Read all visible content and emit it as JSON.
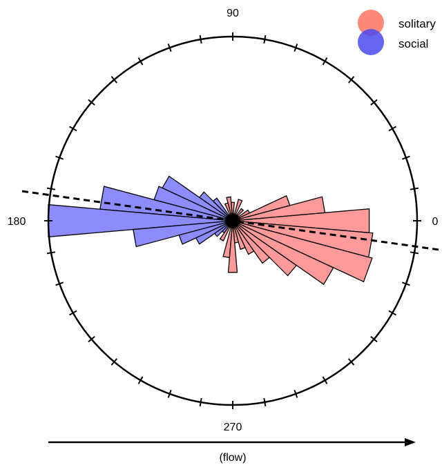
{
  "chart_data": {
    "type": "rose",
    "angle_unit": "degrees",
    "bin_width_deg": 10,
    "angle_labels": [
      {
        "angle": 0,
        "text": "0"
      },
      {
        "angle": 90,
        "text": "90"
      },
      {
        "angle": 180,
        "text": "180"
      },
      {
        "angle": 270,
        "text": "270"
      }
    ],
    "tick_count": 36,
    "radial_max": 1.0,
    "legend_position": "top-right",
    "flow_label": "(flow)",
    "mean_direction_line_deg": 172,
    "series": [
      {
        "name": "solitary",
        "color": "#ff7d7d",
        "bins": [
          {
            "angle": 0,
            "value": 0.74
          },
          {
            "angle": 10,
            "value": 0.5
          },
          {
            "angle": 20,
            "value": 0.32
          },
          {
            "angle": 30,
            "value": 0.1
          },
          {
            "angle": 50,
            "value": 0.08
          },
          {
            "angle": 70,
            "value": 0.12
          },
          {
            "angle": 90,
            "value": 0.1
          },
          {
            "angle": 100,
            "value": 0.13
          },
          {
            "angle": 110,
            "value": 0.1
          },
          {
            "angle": 240,
            "value": 0.12
          },
          {
            "angle": 260,
            "value": 0.2
          },
          {
            "angle": 270,
            "value": 0.28
          },
          {
            "angle": 280,
            "value": 0.12
          },
          {
            "angle": 290,
            "value": 0.16
          },
          {
            "angle": 300,
            "value": 0.2
          },
          {
            "angle": 310,
            "value": 0.28
          },
          {
            "angle": 320,
            "value": 0.42
          },
          {
            "angle": 330,
            "value": 0.6
          },
          {
            "angle": 340,
            "value": 0.78
          },
          {
            "angle": 350,
            "value": 0.76
          }
        ]
      },
      {
        "name": "social",
        "color": "#6b6bff",
        "bins": [
          {
            "angle": 130,
            "value": 0.15
          },
          {
            "angle": 140,
            "value": 0.22
          },
          {
            "angle": 150,
            "value": 0.42
          },
          {
            "angle": 160,
            "value": 0.44
          },
          {
            "angle": 170,
            "value": 0.72
          },
          {
            "angle": 180,
            "value": 1.0
          },
          {
            "angle": 190,
            "value": 0.54
          },
          {
            "angle": 200,
            "value": 0.3
          },
          {
            "angle": 210,
            "value": 0.22
          },
          {
            "angle": 220,
            "value": 0.12
          },
          {
            "angle": 230,
            "value": 0.08
          }
        ]
      }
    ]
  }
}
